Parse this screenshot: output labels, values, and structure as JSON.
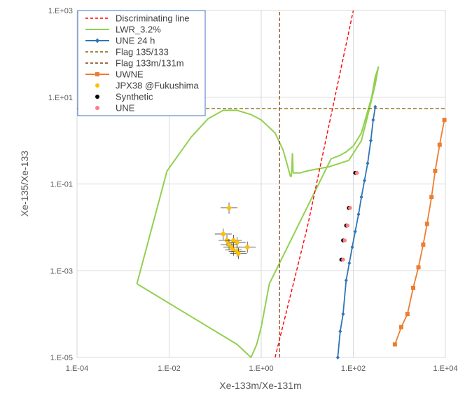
{
  "chart_data": {
    "type": "scatter",
    "xscale": "log",
    "yscale": "log",
    "xlim": [
      0.0001,
      10000
    ],
    "ylim": [
      1e-05,
      1000
    ],
    "xlabel": "Xe-133m/Xe-131m",
    "ylabel": "Xe-135/Xe-133",
    "xticks": [
      "1.E-04",
      "1.E-02",
      "1.E+00",
      "1.E+02",
      "1.E+04"
    ],
    "yticks": [
      "1.E-05",
      "1.E-03",
      "1.E-01",
      "1.E+01",
      "1.E+03"
    ],
    "grid": true,
    "legend_position": "top-left",
    "series": [
      {
        "name": "Discriminating line",
        "kind": "line",
        "style": "dashed",
        "color": "#ff0000",
        "x": [
          2,
          10,
          100
        ],
        "y": [
          1e-05,
          0.01,
          1000
        ]
      },
      {
        "name": "LWR_3.2%",
        "kind": "line",
        "color": "#92d050",
        "x": [
          0.002,
          0.009,
          0.03,
          0.07,
          0.15,
          0.3,
          0.6,
          1.0,
          2.0,
          3.0,
          3.6,
          4.0,
          4.3,
          4.5,
          4.6,
          4.7,
          4.75,
          4.8,
          4.85,
          4.9,
          5.0,
          5.5,
          7.0,
          10,
          30,
          80,
          150,
          220,
          300,
          350,
          330,
          300,
          250,
          150,
          100,
          70,
          50,
          33,
          1.5,
          1.0,
          0.8,
          0.6,
          0.3,
          0.002
        ],
        "y": [
          0.0005,
          0.2,
          1.2,
          3.2,
          5,
          5,
          4,
          3,
          1.5,
          0.6,
          0.3,
          0.2,
          0.15,
          0.15,
          0.2,
          0.35,
          0.5,
          0.45,
          0.3,
          0.2,
          0.18,
          0.18,
          0.18,
          0.2,
          0.25,
          0.35,
          1.0,
          5,
          20,
          50,
          40,
          30,
          10,
          1.5,
          0.75,
          0.55,
          0.45,
          0.38,
          0.0005,
          5e-05,
          2e-05,
          1e-05,
          2e-05,
          0.0005
        ]
      },
      {
        "name": "UNE 24 h",
        "kind": "line",
        "marker": "diamond",
        "color": "#2e75b6",
        "x": [
          46,
          52,
          60,
          70,
          82,
          95,
          110,
          130,
          150,
          175,
          205,
          240,
          270,
          300
        ],
        "y": [
          1e-05,
          4e-05,
          0.0001,
          0.0006,
          0.0015,
          0.0035,
          0.008,
          0.02,
          0.05,
          0.12,
          0.3,
          1.0,
          3,
          6
        ]
      },
      {
        "name": "Flag 135/133",
        "kind": "line",
        "style": "dashed",
        "color": "#806000",
        "x": [
          0.0001,
          10000
        ],
        "y": [
          5.5,
          5.5
        ]
      },
      {
        "name": "Flag 133m/131m",
        "kind": "line",
        "style": "dashed",
        "color": "#843c0c",
        "x": [
          2.5,
          2.5
        ],
        "y": [
          1e-05,
          1000
        ]
      },
      {
        "name": "UWNE",
        "kind": "line",
        "marker": "square",
        "color": "#ed7d31",
        "x": [
          800,
          1100,
          1500,
          2000,
          2600,
          3300,
          4000,
          5000,
          6000,
          7500,
          9500
        ],
        "y": [
          2e-05,
          5e-05,
          0.0001,
          0.0004,
          0.0012,
          0.004,
          0.012,
          0.05,
          0.2,
          0.8,
          3
        ]
      },
      {
        "name": "JPX38 @Fukushima",
        "kind": "scatter",
        "color": "#ffc000",
        "points": [
          {
            "x": 0.2,
            "y": 0.028
          },
          {
            "x": 0.15,
            "y": 0.007
          },
          {
            "x": 0.18,
            "y": 0.005
          },
          {
            "x": 0.25,
            "y": 0.005
          },
          {
            "x": 0.3,
            "y": 0.0045
          },
          {
            "x": 0.2,
            "y": 0.004
          },
          {
            "x": 0.23,
            "y": 0.0035
          },
          {
            "x": 0.5,
            "y": 0.0035
          },
          {
            "x": 0.25,
            "y": 0.003
          },
          {
            "x": 0.3,
            "y": 0.0028
          },
          {
            "x": 0.32,
            "y": 0.0025
          }
        ]
      },
      {
        "name": "Synthetic",
        "kind": "scatter",
        "color": "#000000",
        "points": [
          {
            "x": 110,
            "y": 0.18
          },
          {
            "x": 80,
            "y": 0.028
          },
          {
            "x": 70,
            "y": 0.011
          },
          {
            "x": 60,
            "y": 0.005
          },
          {
            "x": 55,
            "y": 0.0018
          }
        ]
      },
      {
        "name": "UNE",
        "kind": "scatter",
        "color": "#ff7c80",
        "points": [
          {
            "x": 120,
            "y": 0.18
          },
          {
            "x": 85,
            "y": 0.028
          },
          {
            "x": 75,
            "y": 0.011
          },
          {
            "x": 65,
            "y": 0.005
          },
          {
            "x": 60,
            "y": 0.0018
          }
        ]
      }
    ],
    "colors": {
      "axis_text": "#595959",
      "gridline": "#d9d9d9",
      "legend_border": "#4472c4"
    }
  }
}
